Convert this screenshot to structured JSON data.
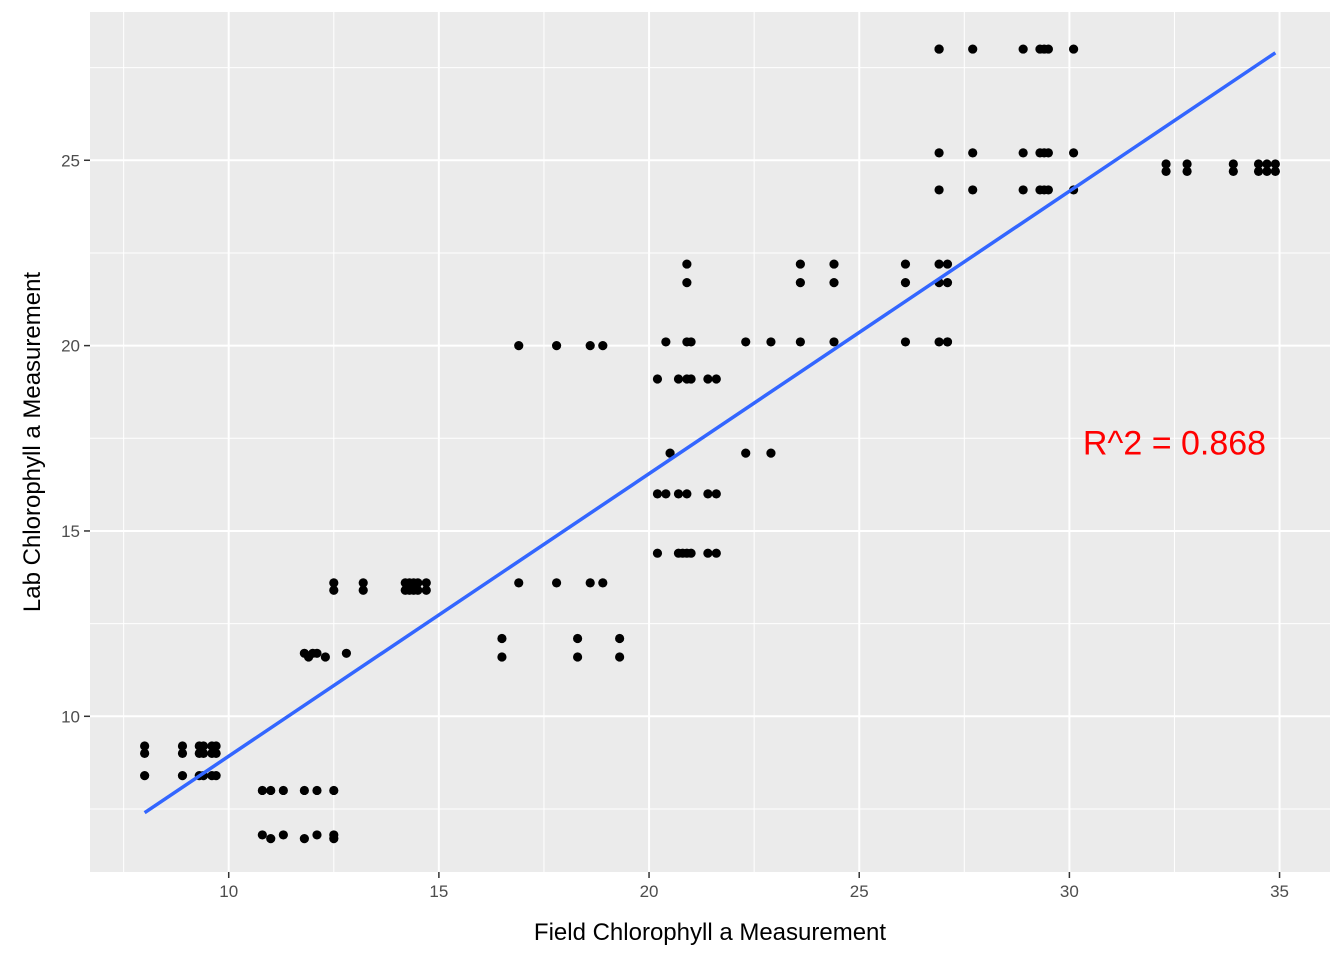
{
  "chart_data": {
    "type": "scatter",
    "title": "",
    "xlabel": "Field Chlorophyll a Measurement",
    "ylabel": "Lab Chlorophyll a Measurement",
    "xlim": [
      6.7,
      36.2
    ],
    "ylim": [
      5.8,
      29.0
    ],
    "x_ticks": [
      10,
      15,
      20,
      25,
      30,
      35
    ],
    "y_ticks": [
      10,
      15,
      20,
      25
    ],
    "grid": true,
    "panel_color": "#ebebeb",
    "point_color": "#000000",
    "fit_color": "#3366ff",
    "annotation": {
      "text": "R^2 = 0.868",
      "x": 32.5,
      "y": 17.3,
      "color": "#ff0000"
    },
    "fit_line": {
      "x": [
        8.0,
        34.9
      ],
      "y": [
        7.4,
        27.9
      ]
    },
    "series": [
      {
        "x": [
          8.0,
          8.0,
          8.0,
          8.9,
          8.9,
          8.9,
          9.3,
          9.3,
          9.3,
          9.4,
          9.4,
          9.4,
          9.6,
          9.6,
          9.6,
          9.7,
          9.7,
          9.7,
          10.8,
          10.8,
          11.0,
          11.0,
          11.3,
          11.3,
          11.8,
          11.8,
          12.1,
          12.1,
          12.5,
          12.5,
          12.5,
          11.8,
          11.9,
          12.0,
          12.1,
          12.3,
          12.8,
          12.5,
          12.5,
          13.2,
          13.2,
          14.2,
          14.2,
          14.3,
          14.3,
          14.4,
          14.4,
          14.5,
          14.5,
          14.7,
          14.7,
          16.5,
          16.5,
          16.9,
          17.8,
          18.3,
          18.3,
          18.6,
          18.9,
          19.3,
          19.3,
          16.9,
          17.8,
          18.6,
          18.9,
          20.2,
          20.2,
          20.2,
          20.4,
          20.5,
          20.4,
          20.7,
          20.7,
          20.7,
          20.9,
          20.9,
          20.9,
          21.0,
          21.0,
          21.0,
          21.4,
          21.4,
          21.4,
          21.6,
          21.6,
          21.6,
          20.9,
          20.9,
          20.8,
          20.9,
          22.3,
          22.3,
          22.9,
          22.9,
          23.6,
          23.6,
          23.6,
          24.4,
          24.4,
          24.4,
          26.1,
          26.1,
          26.1,
          26.9,
          26.9,
          26.9,
          26.9,
          27.1,
          27.1,
          27.1,
          27.1,
          26.9,
          26.9,
          26.9,
          27.7,
          27.7,
          27.7,
          28.9,
          28.9,
          28.9,
          29.3,
          29.3,
          29.3,
          29.4,
          29.4,
          29.4,
          29.5,
          29.5,
          29.5,
          30.1,
          30.1,
          30.1,
          32.3,
          32.3,
          32.8,
          32.8,
          33.9,
          33.9,
          34.5,
          34.5,
          34.7,
          34.7,
          34.9,
          34.9
        ],
        "y": [
          9.2,
          9.0,
          8.4,
          9.2,
          9.0,
          8.4,
          9.2,
          9.0,
          8.4,
          9.2,
          9.0,
          8.4,
          9.2,
          9.0,
          8.4,
          9.2,
          9.0,
          8.4,
          8.0,
          6.8,
          8.0,
          6.7,
          8.0,
          6.8,
          8.0,
          6.7,
          8.0,
          6.8,
          8.0,
          6.8,
          6.7,
          11.7,
          11.6,
          11.7,
          11.7,
          11.6,
          11.7,
          13.6,
          13.4,
          13.6,
          13.4,
          13.6,
          13.4,
          13.6,
          13.4,
          13.6,
          13.4,
          13.6,
          13.4,
          13.6,
          13.4,
          12.1,
          11.6,
          13.6,
          13.6,
          12.1,
          11.6,
          13.6,
          13.6,
          12.1,
          11.6,
          20.0,
          20.0,
          20.0,
          20.0,
          19.1,
          16.0,
          14.4,
          20.1,
          17.1,
          16.0,
          19.1,
          16.0,
          14.4,
          19.1,
          16.0,
          14.4,
          20.1,
          19.1,
          14.4,
          19.1,
          16.0,
          14.4,
          19.1,
          16.0,
          14.4,
          22.2,
          21.7,
          14.4,
          20.1,
          20.1,
          17.1,
          20.1,
          17.1,
          22.2,
          21.7,
          20.1,
          22.2,
          21.7,
          20.1,
          22.2,
          21.7,
          20.1,
          22.2,
          21.7,
          20.1,
          28.0,
          22.2,
          21.7,
          20.1,
          20.1,
          25.2,
          24.2,
          28.0,
          28.0,
          25.2,
          24.2,
          28.0,
          25.2,
          24.2,
          28.0,
          25.2,
          24.2,
          28.0,
          25.2,
          24.2,
          25.2,
          24.2,
          28.0,
          28.0,
          25.2,
          24.2,
          24.9,
          24.7,
          24.9,
          24.7,
          24.9,
          24.7,
          24.9,
          24.7,
          24.9,
          24.7,
          24.9,
          24.7
        ]
      }
    ]
  }
}
